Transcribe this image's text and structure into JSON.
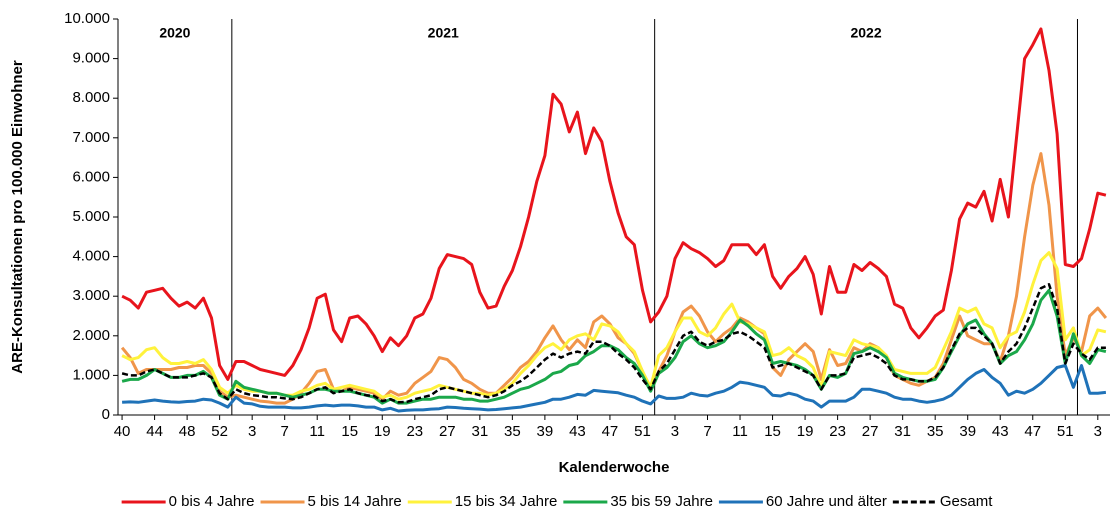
{
  "chart_data": {
    "type": "line",
    "x_label": "Kalenderwoche",
    "y_label": "ARE-Konsultationen pro 100.000 Einwohner",
    "annotations": [
      "2020",
      "2021",
      "2022"
    ],
    "categories": [
      "40",
      null,
      null,
      null,
      "44",
      null,
      null,
      null,
      "48",
      null,
      null,
      null,
      "52",
      null,
      null,
      null,
      "3",
      null,
      null,
      null,
      "7",
      null,
      null,
      null,
      "11",
      null,
      null,
      null,
      "15",
      null,
      null,
      null,
      "19",
      null,
      null,
      null,
      "23",
      null,
      null,
      null,
      "27",
      null,
      null,
      null,
      "31",
      null,
      null,
      null,
      "35",
      null,
      null,
      null,
      "39",
      null,
      null,
      null,
      "43",
      null,
      null,
      null,
      "47",
      null,
      null,
      null,
      "51",
      null,
      null,
      null,
      "3",
      null,
      null,
      null,
      "7",
      null,
      null,
      null,
      "11",
      null,
      null,
      null,
      "15",
      null,
      null,
      null,
      "19",
      null,
      null,
      null,
      "23",
      null,
      null,
      null,
      "27",
      null,
      null,
      null,
      "31",
      null,
      null,
      null,
      "35",
      null,
      null,
      null,
      "39",
      null,
      null,
      null,
      "43",
      null,
      null,
      null,
      "47",
      null,
      null,
      null,
      "51",
      null,
      null,
      null,
      "3",
      null
    ],
    "ylim": [
      0,
      10000
    ],
    "yticks": [
      0,
      {
        "value": 1000,
        "label": "1.000"
      },
      {
        "value": 2000,
        "label": "2.000"
      },
      {
        "value": 3000,
        "label": "3.000"
      },
      {
        "value": 4000,
        "label": "4.000"
      },
      {
        "value": 5000,
        "label": "5.000"
      },
      {
        "value": 6000,
        "label": "6.000"
      },
      {
        "value": 7000,
        "label": "7.000"
      },
      {
        "value": 8000,
        "label": "8.000"
      },
      {
        "value": 9000,
        "label": "9.000"
      },
      {
        "value": 10000,
        "label": "10.000"
      }
    ],
    "legend": "bottom",
    "series": [
      {
        "name": "0 bis 4 Jahre",
        "color": "#e8141c",
        "values": [
          3000,
          2900,
          2700,
          3100,
          3150,
          3200,
          2950,
          2750,
          2850,
          2700,
          2950,
          2450,
          1250,
          900,
          1350,
          1350,
          1250,
          1150,
          1100,
          1050,
          1000,
          1250,
          1650,
          2200,
          2950,
          3050,
          2150,
          1850,
          2450,
          2500,
          2300,
          2000,
          1600,
          1950,
          1750,
          2000,
          2450,
          2550,
          2950,
          3700,
          4050,
          4000,
          3950,
          3800,
          3100,
          2700,
          2750,
          3250,
          3650,
          4250,
          5000,
          5900,
          6550,
          8100,
          7850,
          7150,
          7650,
          6600,
          7250,
          6900,
          5900,
          5100,
          4500,
          4300,
          3150,
          2350,
          2600,
          3000,
          3950,
          4350,
          4200,
          4100,
          3950,
          3750,
          3900,
          4300,
          4300,
          4300,
          4050,
          4300,
          3500,
          3200,
          3500,
          3700,
          4000,
          3550,
          2550,
          3750,
          3100,
          3100,
          3800,
          3650,
          3850,
          3700,
          3500,
          2800,
          2700,
          2200,
          1950,
          2200,
          2500,
          2650,
          3650,
          4950,
          5350,
          5250,
          5650,
          4900,
          5950,
          5000,
          7000,
          9000,
          9350,
          9750,
          8700,
          7100,
          3800,
          3750,
          3950,
          4700,
          5600,
          5550
        ]
      },
      {
        "name": "5 bis 14 Jahre",
        "color": "#f0954a",
        "values": [
          1700,
          1450,
          1050,
          1150,
          1150,
          1150,
          1150,
          1200,
          1200,
          1250,
          1250,
          1050,
          600,
          450,
          500,
          450,
          400,
          350,
          330,
          300,
          300,
          400,
          550,
          800,
          1100,
          1150,
          650,
          600,
          700,
          650,
          600,
          550,
          400,
          600,
          500,
          550,
          800,
          950,
          1100,
          1450,
          1400,
          1200,
          900,
          800,
          650,
          550,
          550,
          750,
          950,
          1200,
          1350,
          1600,
          1950,
          2250,
          1900,
          1650,
          1900,
          1700,
          2350,
          2500,
          2300,
          1950,
          1800,
          1550,
          1100,
          650,
          1100,
          1500,
          2100,
          2600,
          2750,
          2500,
          2100,
          1850,
          2050,
          2200,
          2450,
          2350,
          2200,
          2050,
          1200,
          1000,
          1400,
          1600,
          1800,
          1600,
          900,
          1650,
          1250,
          1300,
          1700,
          1600,
          1800,
          1700,
          1450,
          1000,
          900,
          800,
          750,
          850,
          950,
          1300,
          1900,
          2500,
          2000,
          1900,
          1800,
          1800,
          1350,
          2000,
          3000,
          4500,
          5800,
          6600,
          5300,
          3000,
          1500,
          1950,
          1600,
          2500,
          2700,
          2450
        ]
      },
      {
        "name": "15 bis 34 Jahre",
        "color": "#fff23c",
        "values": [
          1500,
          1400,
          1450,
          1650,
          1700,
          1450,
          1300,
          1300,
          1350,
          1300,
          1400,
          1150,
          700,
          550,
          750,
          650,
          600,
          600,
          550,
          550,
          500,
          500,
          600,
          650,
          750,
          800,
          650,
          700,
          750,
          700,
          650,
          600,
          450,
          500,
          400,
          450,
          550,
          600,
          650,
          750,
          700,
          650,
          600,
          550,
          550,
          500,
          550,
          650,
          800,
          1050,
          1250,
          1500,
          1700,
          1800,
          1650,
          1900,
          2000,
          2050,
          1900,
          2300,
          2250,
          2100,
          1800,
          1600,
          1100,
          700,
          1500,
          1700,
          2100,
          2450,
          2450,
          2100,
          2000,
          2200,
          2550,
          2800,
          2350,
          2300,
          2200,
          2100,
          1500,
          1550,
          1700,
          1500,
          1400,
          1200,
          700,
          1600,
          1550,
          1500,
          1900,
          1800,
          1750,
          1700,
          1500,
          1150,
          1100,
          1050,
          1050,
          1050,
          1200,
          1650,
          2100,
          2700,
          2600,
          2700,
          2300,
          2200,
          1700,
          2000,
          2100,
          2600,
          3300,
          3900,
          4100,
          3700,
          1900,
          2200,
          1500,
          1650,
          2150,
          2100
        ]
      },
      {
        "name": "35 bis 59 Jahre",
        "color": "#1ba84a",
        "values": [
          850,
          900,
          900,
          1000,
          1150,
          1050,
          950,
          950,
          1000,
          1000,
          1100,
          950,
          500,
          400,
          850,
          700,
          650,
          600,
          550,
          550,
          500,
          450,
          500,
          550,
          650,
          650,
          600,
          600,
          600,
          550,
          500,
          450,
          300,
          400,
          300,
          300,
          350,
          400,
          400,
          450,
          450,
          450,
          400,
          400,
          350,
          350,
          400,
          450,
          550,
          650,
          700,
          800,
          900,
          1050,
          1100,
          1250,
          1300,
          1500,
          1600,
          1750,
          1750,
          1650,
          1450,
          1300,
          1000,
          600,
          1050,
          1200,
          1450,
          1850,
          2000,
          1800,
          1700,
          1750,
          1850,
          2100,
          2400,
          2250,
          2050,
          1900,
          1300,
          1350,
          1300,
          1250,
          1150,
          1000,
          650,
          1000,
          950,
          1050,
          1550,
          1600,
          1700,
          1600,
          1450,
          1050,
          950,
          900,
          850,
          850,
          900,
          1200,
          1600,
          2000,
          2300,
          2400,
          2050,
          1800,
          1300,
          1500,
          1600,
          1900,
          2300,
          2900,
          3150,
          2500,
          1300,
          2050,
          1500,
          1300,
          1650,
          1600
        ]
      },
      {
        "name": "60 Jahre und älter",
        "color": "#1f72b8",
        "values": [
          320,
          330,
          320,
          350,
          380,
          350,
          330,
          320,
          340,
          350,
          400,
          380,
          300,
          200,
          450,
          300,
          280,
          220,
          200,
          200,
          200,
          180,
          180,
          200,
          230,
          250,
          230,
          250,
          250,
          230,
          200,
          200,
          130,
          170,
          100,
          120,
          130,
          130,
          150,
          160,
          200,
          190,
          170,
          160,
          150,
          130,
          140,
          160,
          180,
          200,
          240,
          280,
          320,
          400,
          400,
          450,
          520,
          500,
          620,
          600,
          580,
          560,
          500,
          450,
          350,
          280,
          480,
          420,
          420,
          450,
          550,
          500,
          480,
          550,
          600,
          700,
          830,
          800,
          750,
          700,
          500,
          480,
          550,
          500,
          400,
          350,
          200,
          350,
          350,
          350,
          450,
          650,
          650,
          600,
          550,
          450,
          400,
          400,
          350,
          320,
          350,
          400,
          500,
          700,
          900,
          1050,
          1150,
          950,
          800,
          500,
          600,
          550,
          650,
          800,
          1000,
          1200,
          1250,
          700,
          1250,
          550,
          550,
          570
        ]
      },
      {
        "name": "Gesamt",
        "color": "#000000",
        "dashed": true,
        "values": [
          1050,
          1000,
          1000,
          1100,
          1150,
          1050,
          950,
          950,
          950,
          1000,
          1050,
          950,
          550,
          400,
          650,
          550,
          500,
          480,
          450,
          450,
          420,
          400,
          450,
          550,
          650,
          700,
          550,
          600,
          650,
          550,
          500,
          480,
          350,
          400,
          320,
          330,
          400,
          450,
          500,
          650,
          700,
          650,
          600,
          550,
          500,
          450,
          500,
          600,
          750,
          850,
          1000,
          1200,
          1400,
          1550,
          1450,
          1550,
          1600,
          1550,
          1850,
          1850,
          1750,
          1550,
          1400,
          1200,
          900,
          650,
          1100,
          1300,
          1650,
          2000,
          2100,
          1850,
          1750,
          1850,
          1900,
          2050,
          2100,
          2000,
          1850,
          1700,
          1200,
          1250,
          1300,
          1200,
          1100,
          1000,
          650,
          1000,
          1000,
          1050,
          1450,
          1500,
          1550,
          1450,
          1300,
          1000,
          900,
          900,
          850,
          850,
          950,
          1200,
          1650,
          2050,
          2200,
          2200,
          2000,
          1800,
          1300,
          1600,
          1800,
          2200,
          2700,
          3200,
          3300,
          2700,
          1300,
          1800,
          1550,
          1400,
          1700,
          1700
        ]
      }
    ]
  }
}
